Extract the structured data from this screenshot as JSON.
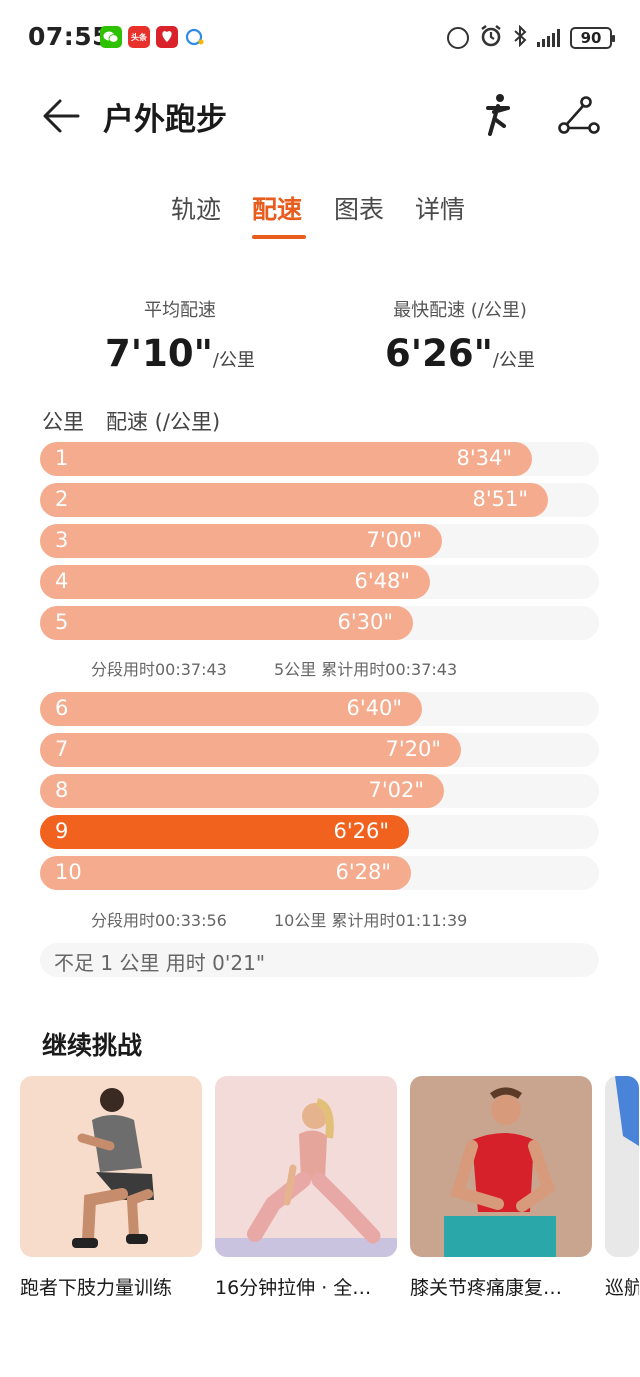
{
  "status_bar": {
    "time": "07:55",
    "app_icons": [
      "wechat-icon",
      "toutiao-icon",
      "pinduoduo-icon",
      "misc-app-icon"
    ],
    "toutiao_text": "头条",
    "battery": "90"
  },
  "header": {
    "title": "户外跑步",
    "back_icon": "back-arrow-icon",
    "action_icons": [
      "running-figure-icon",
      "route-icon"
    ]
  },
  "tabs": [
    {
      "label": "轨迹",
      "active": false
    },
    {
      "label": "配速",
      "active": true
    },
    {
      "label": "图表",
      "active": false
    },
    {
      "label": "详情",
      "active": false
    }
  ],
  "summary": {
    "avg_label": "平均配速",
    "avg_value": "7'10\"",
    "avg_unit": "/公里",
    "best_label": "最快配速 (/公里)",
    "best_value": "6'26\"",
    "best_unit": "/公里"
  },
  "pace_list": {
    "header_km": "公里",
    "header_pace": "配速 (/公里)",
    "accent_color": "#f2621f",
    "bar_color": "#f5ab8d",
    "rows": [
      {
        "km": "1",
        "pace": "8'34\"",
        "seconds": 514
      },
      {
        "km": "2",
        "pace": "8'51\"",
        "seconds": 531
      },
      {
        "km": "3",
        "pace": "7'00\"",
        "seconds": 420
      },
      {
        "km": "4",
        "pace": "6'48\"",
        "seconds": 408
      },
      {
        "km": "5",
        "pace": "6'30\"",
        "seconds": 390
      },
      {
        "km": "6",
        "pace": "6'40\"",
        "seconds": 400
      },
      {
        "km": "7",
        "pace": "7'20\"",
        "seconds": 440
      },
      {
        "km": "8",
        "pace": "7'02\"",
        "seconds": 422
      },
      {
        "km": "9",
        "pace": "6'26\"",
        "seconds": 386,
        "best": true
      },
      {
        "km": "10",
        "pace": "6'28\"",
        "seconds": 388
      }
    ],
    "segment_1": {
      "split": "分段用时00:37:43",
      "cumulative": "5公里 累计用时00:37:43"
    },
    "segment_2": {
      "split": "分段用时00:33:56",
      "cumulative": "10公里 累计用时01:11:39"
    },
    "remainder": "不足 1 公里 用时 0'21\""
  },
  "challenges": {
    "title": "继续挑战",
    "cards": [
      {
        "title": "跑者下肢力量训练",
        "image": "squat-training-photo",
        "bg": "#f7dccb"
      },
      {
        "title": "16分钟拉伸 · 全…",
        "image": "stretching-photo",
        "bg": "#f3dbd9"
      },
      {
        "title": "膝关节疼痛康复…",
        "image": "knee-rehab-photo",
        "bg": "#c9a48f"
      },
      {
        "title": "巡航",
        "image": "partial-photo",
        "bg": "#5b8bd6"
      }
    ]
  }
}
